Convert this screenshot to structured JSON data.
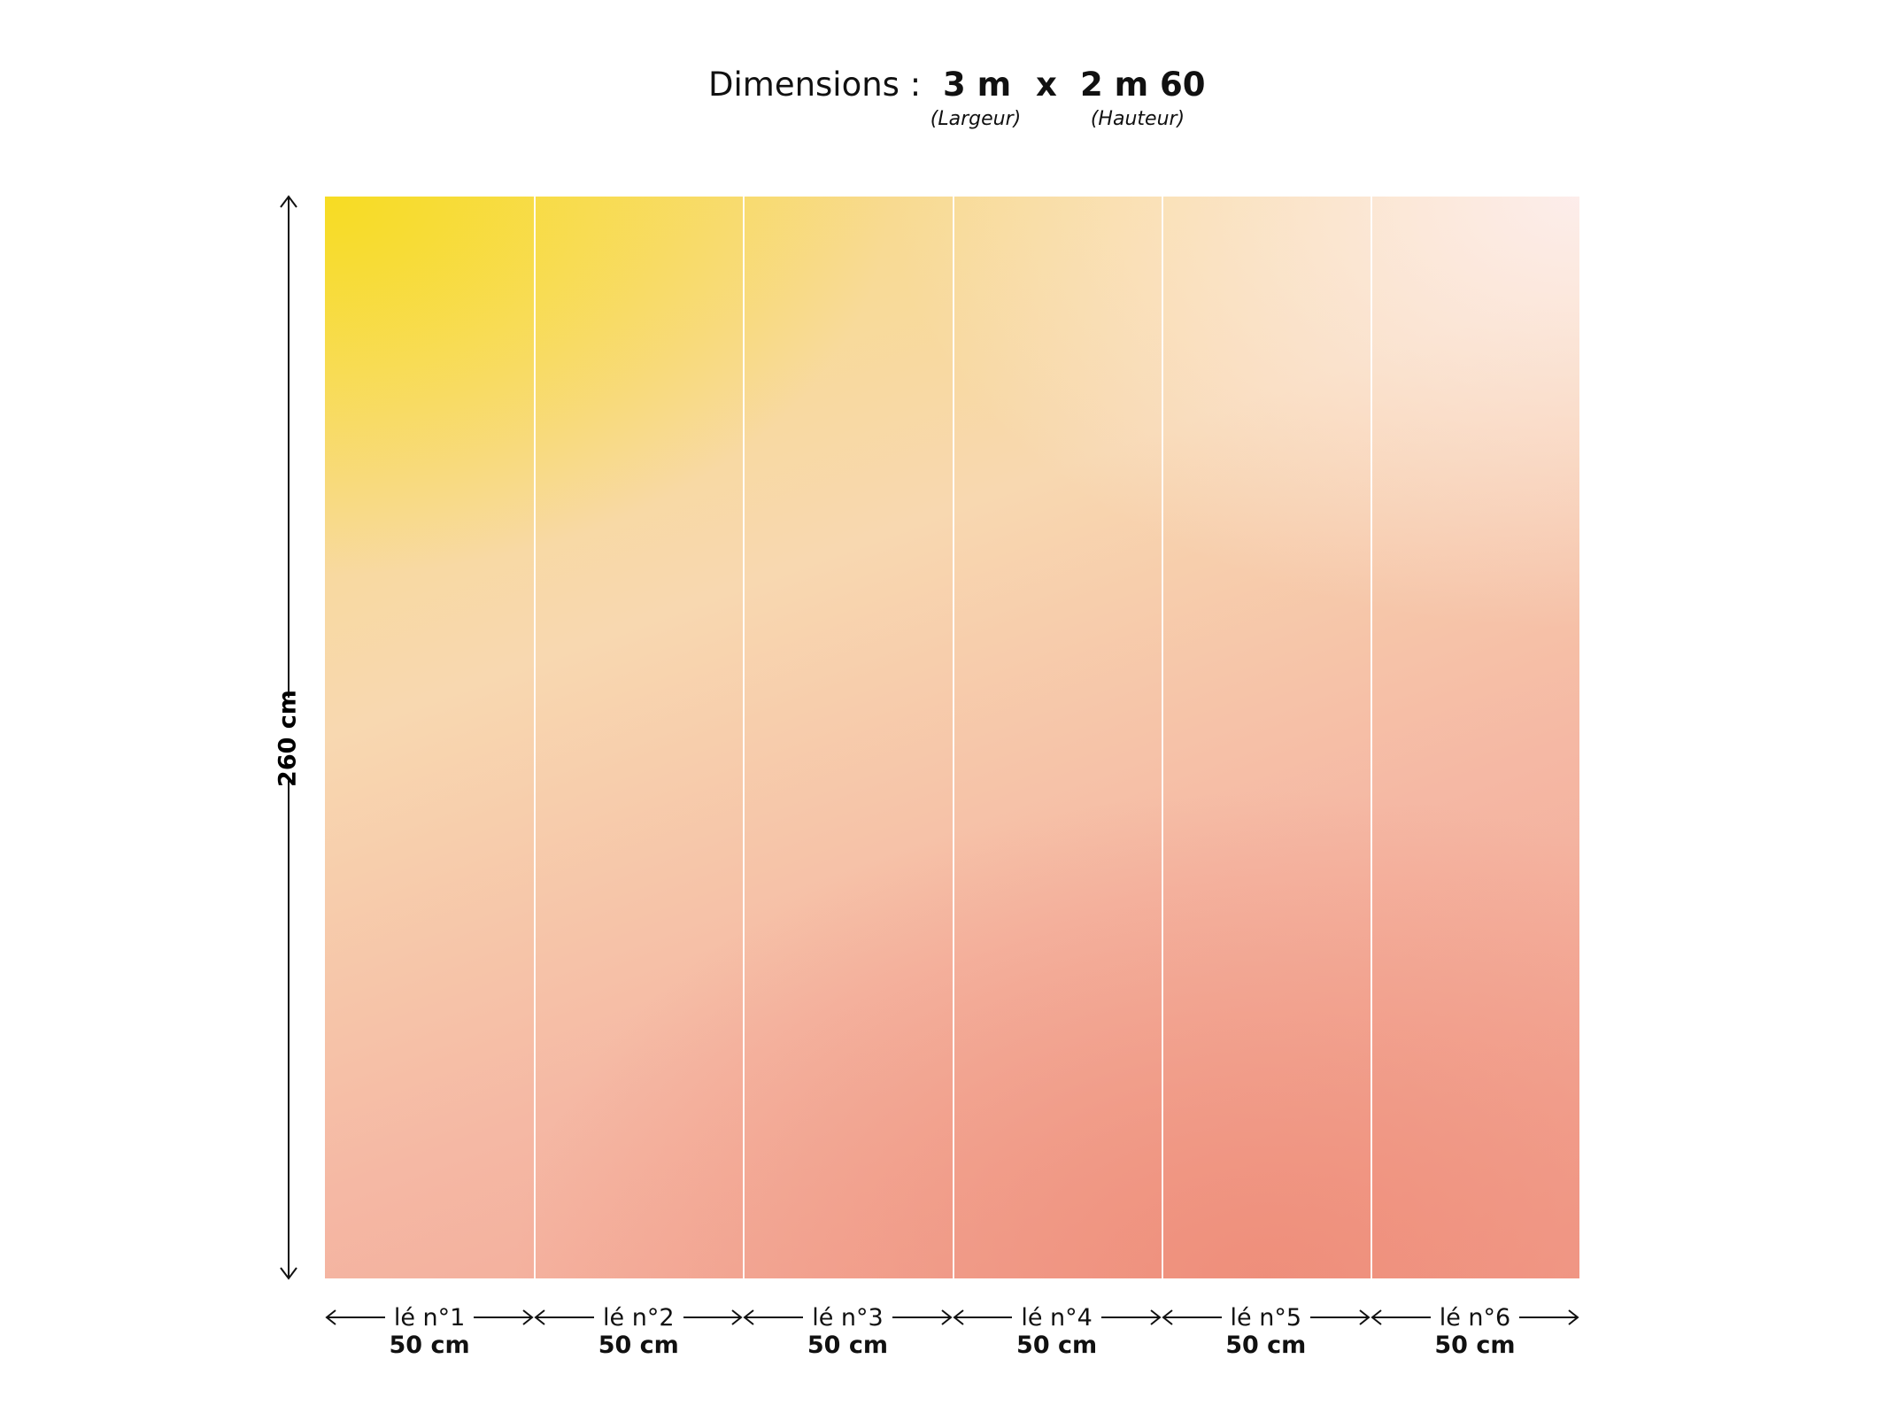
{
  "header": {
    "label": "Dimensions :",
    "width": "3 m",
    "separator": "x",
    "height": "2 m 60",
    "width_caption": "(Largeur)",
    "height_caption": "(Hauteur)"
  },
  "side": {
    "label": "260 cm"
  },
  "panels": [
    {
      "label": "lé n°1",
      "width": "50 cm"
    },
    {
      "label": "lé n°2",
      "width": "50 cm"
    },
    {
      "label": "lé n°3",
      "width": "50 cm"
    },
    {
      "label": "lé n°4",
      "width": "50 cm"
    },
    {
      "label": "lé n°5",
      "width": "50 cm"
    },
    {
      "label": "lé n°6",
      "width": "50 cm"
    }
  ]
}
